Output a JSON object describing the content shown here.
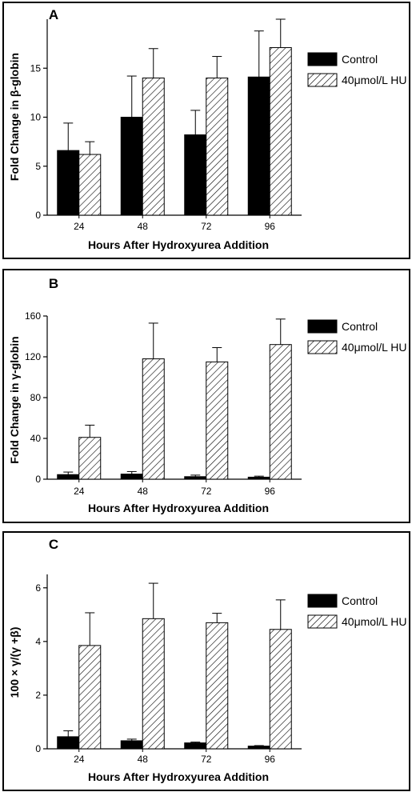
{
  "chart_data": [
    {
      "type": "bar",
      "panel_label": "A",
      "categories": [
        "24",
        "48",
        "72",
        "96"
      ],
      "xlabel": "Hours After Hydroxyurea Addition",
      "ylabel": "Fold Change in β-globin",
      "ylim": [
        0,
        20
      ],
      "yticks": [
        0,
        5,
        10,
        15
      ],
      "series": [
        {
          "name": "Control",
          "values": [
            6.6,
            10.0,
            8.2,
            14.1
          ],
          "errors": [
            2.8,
            4.2,
            2.5,
            4.7
          ],
          "fill": "solid",
          "color": "#000000"
        },
        {
          "name": "40μmol/L HU",
          "values": [
            6.2,
            14.0,
            14.0,
            17.1
          ],
          "errors": [
            1.3,
            3.0,
            2.2,
            2.9
          ],
          "fill": "hatch",
          "color": "#000000"
        }
      ],
      "legend_position": "top-right"
    },
    {
      "type": "bar",
      "panel_label": "B",
      "categories": [
        "24",
        "48",
        "72",
        "96"
      ],
      "xlabel": "Hours After Hydroxyurea Addition",
      "ylabel": "Fold Change in γ-globin",
      "ylim": [
        0,
        160
      ],
      "yticks": [
        0,
        40,
        80,
        120,
        160
      ],
      "series": [
        {
          "name": "Control",
          "values": [
            4.5,
            5.0,
            2.5,
            2.0
          ],
          "errors": [
            2.5,
            2.5,
            1.5,
            1.0
          ],
          "fill": "solid",
          "color": "#000000"
        },
        {
          "name": "40μmol/L HU",
          "values": [
            41,
            118,
            115,
            132
          ],
          "errors": [
            12,
            35,
            14,
            25
          ],
          "fill": "hatch",
          "color": "#000000"
        }
      ],
      "legend_position": "top-right"
    },
    {
      "type": "bar",
      "panel_label": "C",
      "categories": [
        "24",
        "48",
        "72",
        "96"
      ],
      "xlabel": "Hours After Hydroxyurea Addition",
      "ylabel": "100 × γ/(γ +β)",
      "ylim": [
        0,
        6.5
      ],
      "yticks": [
        0,
        2,
        4,
        6
      ],
      "series": [
        {
          "name": "Control",
          "values": [
            0.45,
            0.3,
            0.22,
            0.1
          ],
          "errors": [
            0.22,
            0.06,
            0.03,
            0.02
          ],
          "fill": "solid",
          "color": "#000000"
        },
        {
          "name": "40μmol/L HU",
          "values": [
            3.85,
            4.85,
            4.7,
            4.45
          ],
          "errors": [
            1.22,
            1.32,
            0.35,
            1.1
          ],
          "fill": "hatch",
          "color": "#000000"
        }
      ],
      "legend_position": "top-right"
    }
  ]
}
